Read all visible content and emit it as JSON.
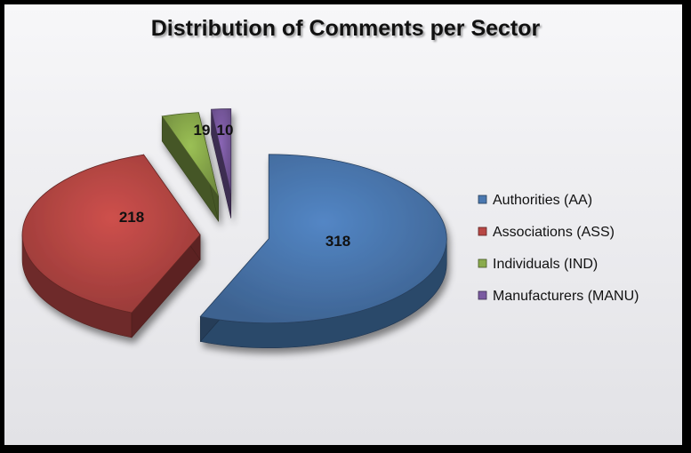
{
  "chart_data": {
    "type": "pie",
    "title": "Distribution of Comments per Sector",
    "legend_position": "right",
    "three_d": true,
    "exploded": true,
    "slices": [
      {
        "label": "Authorities (AA)",
        "value": 318,
        "color": "#4a78b0"
      },
      {
        "label": "Associations (ASS)",
        "value": 218,
        "color": "#b84744"
      },
      {
        "label": "Individuals (IND)",
        "value": 19,
        "color": "#8aab4c"
      },
      {
        "label": "Manufacturers (MANU)",
        "value": 10,
        "color": "#7a5aa1"
      }
    ]
  }
}
